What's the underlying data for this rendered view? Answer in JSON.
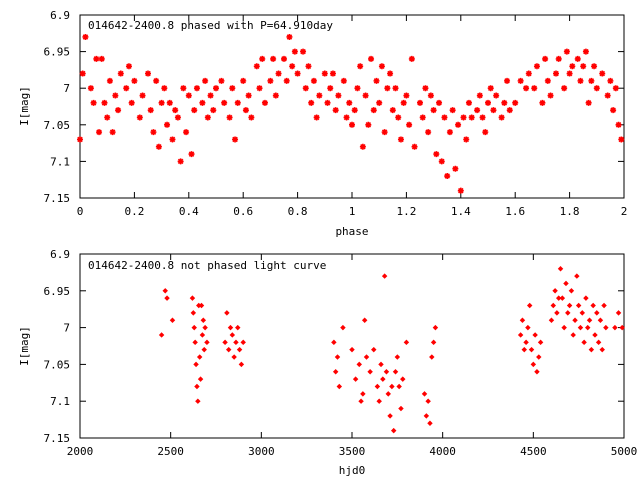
{
  "chart_data": [
    {
      "type": "scatter",
      "title": "014642-2400.8 phased with P=64.910day",
      "xlabel": "phase",
      "ylabel": "I[mag]",
      "xlim": [
        0,
        2
      ],
      "ylim": [
        7.15,
        6.9
      ],
      "y_inverted": true,
      "x_ticks": [
        "0",
        "0.2",
        "0.4",
        "0.6",
        "0.8",
        "1",
        "1.2",
        "1.4",
        "1.6",
        "1.8",
        "2"
      ],
      "y_ticks": [
        "6.9",
        "6.95",
        "7",
        "7.05",
        "7.1",
        "7.15"
      ],
      "marker_color": "#ff0000",
      "marker": "star",
      "points": [
        [
          0.0,
          7.07
        ],
        [
          0.01,
          6.98
        ],
        [
          0.02,
          6.93
        ],
        [
          0.04,
          7.0
        ],
        [
          0.05,
          7.02
        ],
        [
          0.06,
          6.96
        ],
        [
          0.07,
          7.06
        ],
        [
          0.08,
          6.96
        ],
        [
          0.09,
          7.02
        ],
        [
          0.1,
          7.04
        ],
        [
          0.11,
          6.99
        ],
        [
          0.12,
          7.06
        ],
        [
          0.13,
          7.01
        ],
        [
          0.14,
          7.03
        ],
        [
          0.15,
          6.98
        ],
        [
          0.17,
          7.0
        ],
        [
          0.18,
          6.97
        ],
        [
          0.19,
          7.02
        ],
        [
          0.2,
          6.99
        ],
        [
          0.22,
          7.04
        ],
        [
          0.23,
          7.01
        ],
        [
          0.25,
          6.98
        ],
        [
          0.26,
          7.03
        ],
        [
          0.27,
          7.06
        ],
        [
          0.28,
          6.99
        ],
        [
          0.29,
          7.08
        ],
        [
          0.3,
          7.02
        ],
        [
          0.31,
          7.0
        ],
        [
          0.32,
          7.05
        ],
        [
          0.33,
          7.02
        ],
        [
          0.34,
          7.07
        ],
        [
          0.35,
          7.03
        ],
        [
          0.36,
          7.04
        ],
        [
          0.37,
          7.1
        ],
        [
          0.38,
          7.0
        ],
        [
          0.39,
          7.06
        ],
        [
          0.4,
          7.01
        ],
        [
          0.41,
          7.09
        ],
        [
          0.42,
          7.03
        ],
        [
          0.43,
          7.0
        ],
        [
          0.45,
          7.02
        ],
        [
          0.46,
          6.99
        ],
        [
          0.47,
          7.04
        ],
        [
          0.48,
          7.01
        ],
        [
          0.49,
          7.03
        ],
        [
          0.5,
          7.0
        ],
        [
          0.52,
          6.99
        ],
        [
          0.53,
          7.02
        ],
        [
          0.55,
          7.04
        ],
        [
          0.56,
          7.0
        ],
        [
          0.57,
          7.07
        ],
        [
          0.58,
          7.02
        ],
        [
          0.6,
          6.99
        ],
        [
          0.61,
          7.03
        ],
        [
          0.62,
          7.01
        ],
        [
          0.63,
          7.04
        ],
        [
          0.65,
          6.97
        ],
        [
          0.66,
          7.0
        ],
        [
          0.67,
          6.96
        ],
        [
          0.68,
          7.02
        ],
        [
          0.7,
          6.99
        ],
        [
          0.71,
          6.96
        ],
        [
          0.72,
          7.01
        ],
        [
          0.73,
          6.98
        ],
        [
          0.75,
          6.96
        ],
        [
          0.76,
          6.99
        ],
        [
          0.77,
          6.93
        ],
        [
          0.78,
          6.97
        ],
        [
          0.79,
          6.95
        ],
        [
          0.8,
          6.98
        ],
        [
          0.82,
          6.95
        ],
        [
          0.83,
          7.0
        ],
        [
          0.84,
          6.97
        ],
        [
          0.85,
          7.02
        ],
        [
          0.86,
          6.99
        ],
        [
          0.87,
          7.04
        ],
        [
          0.88,
          7.01
        ],
        [
          0.9,
          6.98
        ],
        [
          0.91,
          7.02
        ],
        [
          0.92,
          7.0
        ],
        [
          0.93,
          6.98
        ],
        [
          0.94,
          7.03
        ],
        [
          0.95,
          7.01
        ],
        [
          0.97,
          6.99
        ],
        [
          0.98,
          7.04
        ],
        [
          0.99,
          7.02
        ],
        [
          1.0,
          7.05
        ],
        [
          1.01,
          7.03
        ],
        [
          1.02,
          7.0
        ],
        [
          1.03,
          6.97
        ],
        [
          1.04,
          7.08
        ],
        [
          1.05,
          7.01
        ],
        [
          1.06,
          7.05
        ],
        [
          1.07,
          6.96
        ],
        [
          1.08,
          7.03
        ],
        [
          1.09,
          6.99
        ],
        [
          1.1,
          7.02
        ],
        [
          1.11,
          6.97
        ],
        [
          1.12,
          7.06
        ],
        [
          1.13,
          7.0
        ],
        [
          1.14,
          6.98
        ],
        [
          1.15,
          7.03
        ],
        [
          1.16,
          7.0
        ],
        [
          1.17,
          7.04
        ],
        [
          1.18,
          7.07
        ],
        [
          1.19,
          7.02
        ],
        [
          1.2,
          7.01
        ],
        [
          1.21,
          7.05
        ],
        [
          1.22,
          6.96
        ],
        [
          1.23,
          7.08
        ],
        [
          1.25,
          7.02
        ],
        [
          1.26,
          7.04
        ],
        [
          1.27,
          7.0
        ],
        [
          1.28,
          7.06
        ],
        [
          1.29,
          7.01
        ],
        [
          1.3,
          7.03
        ],
        [
          1.31,
          7.09
        ],
        [
          1.32,
          7.02
        ],
        [
          1.33,
          7.1
        ],
        [
          1.34,
          7.04
        ],
        [
          1.35,
          7.12
        ],
        [
          1.36,
          7.06
        ],
        [
          1.37,
          7.03
        ],
        [
          1.38,
          7.11
        ],
        [
          1.39,
          7.05
        ],
        [
          1.4,
          7.14
        ],
        [
          1.41,
          7.04
        ],
        [
          1.42,
          7.07
        ],
        [
          1.43,
          7.02
        ],
        [
          1.44,
          7.04
        ],
        [
          1.46,
          7.03
        ],
        [
          1.47,
          7.01
        ],
        [
          1.48,
          7.04
        ],
        [
          1.49,
          7.06
        ],
        [
          1.5,
          7.02
        ],
        [
          1.51,
          7.0
        ],
        [
          1.52,
          7.03
        ],
        [
          1.53,
          7.01
        ],
        [
          1.55,
          7.04
        ],
        [
          1.56,
          7.02
        ],
        [
          1.57,
          6.99
        ],
        [
          1.58,
          7.03
        ],
        [
          1.6,
          7.02
        ],
        [
          1.62,
          6.99
        ],
        [
          1.64,
          7.0
        ],
        [
          1.65,
          6.98
        ],
        [
          1.67,
          7.0
        ],
        [
          1.68,
          6.97
        ],
        [
          1.7,
          7.02
        ],
        [
          1.71,
          6.96
        ],
        [
          1.72,
          6.99
        ],
        [
          1.73,
          7.01
        ],
        [
          1.75,
          6.98
        ],
        [
          1.76,
          6.96
        ],
        [
          1.78,
          7.0
        ],
        [
          1.79,
          6.95
        ],
        [
          1.8,
          6.98
        ],
        [
          1.81,
          6.97
        ],
        [
          1.83,
          6.96
        ],
        [
          1.84,
          6.99
        ],
        [
          1.85,
          6.97
        ],
        [
          1.86,
          6.95
        ],
        [
          1.87,
          7.02
        ],
        [
          1.88,
          6.99
        ],
        [
          1.89,
          6.97
        ],
        [
          1.9,
          7.0
        ],
        [
          1.92,
          6.98
        ],
        [
          1.94,
          7.01
        ],
        [
          1.95,
          6.99
        ],
        [
          1.96,
          7.03
        ],
        [
          1.97,
          7.0
        ],
        [
          1.98,
          7.05
        ],
        [
          1.99,
          7.07
        ]
      ]
    },
    {
      "type": "scatter",
      "title": "014642-2400.8 not phased light curve",
      "xlabel": "hjd0",
      "ylabel": "I[mag]",
      "xlim": [
        2000,
        5000
      ],
      "ylim": [
        7.15,
        6.9
      ],
      "y_inverted": true,
      "x_ticks": [
        "2000",
        "2500",
        "3000",
        "3500",
        "4000",
        "4500",
        "5000"
      ],
      "y_ticks": [
        "6.9",
        "6.95",
        "7",
        "7.05",
        "7.1",
        "7.15"
      ],
      "marker_color": "#ff0000",
      "marker": "diamond",
      "points": [
        [
          2450,
          7.01
        ],
        [
          2470,
          6.95
        ],
        [
          2480,
          6.96
        ],
        [
          2510,
          6.99
        ],
        [
          2620,
          6.96
        ],
        [
          2625,
          6.98
        ],
        [
          2630,
          7.0
        ],
        [
          2635,
          7.02
        ],
        [
          2640,
          7.05
        ],
        [
          2645,
          7.08
        ],
        [
          2650,
          7.1
        ],
        [
          2655,
          6.97
        ],
        [
          2660,
          7.04
        ],
        [
          2665,
          7.07
        ],
        [
          2670,
          6.97
        ],
        [
          2675,
          7.01
        ],
        [
          2680,
          6.99
        ],
        [
          2685,
          7.03
        ],
        [
          2690,
          7.0
        ],
        [
          2700,
          7.02
        ],
        [
          2800,
          7.02
        ],
        [
          2810,
          6.98
        ],
        [
          2820,
          7.03
        ],
        [
          2830,
          7.0
        ],
        [
          2840,
          7.01
        ],
        [
          2850,
          7.04
        ],
        [
          2860,
          7.02
        ],
        [
          2870,
          7.0
        ],
        [
          2880,
          7.03
        ],
        [
          2890,
          7.05
        ],
        [
          2900,
          7.02
        ],
        [
          3400,
          7.02
        ],
        [
          3410,
          7.06
        ],
        [
          3420,
          7.04
        ],
        [
          3430,
          7.08
        ],
        [
          3450,
          7.0
        ],
        [
          3500,
          7.03
        ],
        [
          3520,
          7.07
        ],
        [
          3540,
          7.05
        ],
        [
          3550,
          7.1
        ],
        [
          3560,
          7.09
        ],
        [
          3570,
          6.99
        ],
        [
          3580,
          7.04
        ],
        [
          3600,
          7.06
        ],
        [
          3620,
          7.03
        ],
        [
          3640,
          7.08
        ],
        [
          3650,
          7.1
        ],
        [
          3660,
          7.05
        ],
        [
          3670,
          7.07
        ],
        [
          3680,
          6.93
        ],
        [
          3690,
          7.06
        ],
        [
          3700,
          7.09
        ],
        [
          3710,
          7.12
        ],
        [
          3720,
          7.08
        ],
        [
          3730,
          7.14
        ],
        [
          3740,
          7.06
        ],
        [
          3750,
          7.04
        ],
        [
          3760,
          7.08
        ],
        [
          3770,
          7.11
        ],
        [
          3780,
          7.07
        ],
        [
          3800,
          7.02
        ],
        [
          3900,
          7.09
        ],
        [
          3910,
          7.12
        ],
        [
          3920,
          7.1
        ],
        [
          3930,
          7.13
        ],
        [
          3940,
          7.04
        ],
        [
          3950,
          7.02
        ],
        [
          3960,
          7.0
        ],
        [
          4430,
          7.01
        ],
        [
          4440,
          6.99
        ],
        [
          4450,
          7.03
        ],
        [
          4460,
          7.02
        ],
        [
          4470,
          7.0
        ],
        [
          4480,
          6.97
        ],
        [
          4490,
          7.03
        ],
        [
          4500,
          7.05
        ],
        [
          4510,
          7.01
        ],
        [
          4520,
          7.06
        ],
        [
          4530,
          7.04
        ],
        [
          4540,
          7.02
        ],
        [
          4600,
          6.99
        ],
        [
          4610,
          6.97
        ],
        [
          4620,
          6.95
        ],
        [
          4630,
          6.98
        ],
        [
          4640,
          6.96
        ],
        [
          4650,
          6.92
        ],
        [
          4660,
          6.96
        ],
        [
          4670,
          7.0
        ],
        [
          4680,
          6.94
        ],
        [
          4690,
          6.98
        ],
        [
          4700,
          6.97
        ],
        [
          4710,
          6.95
        ],
        [
          4720,
          7.01
        ],
        [
          4730,
          6.99
        ],
        [
          4740,
          6.93
        ],
        [
          4750,
          6.97
        ],
        [
          4760,
          7.0
        ],
        [
          4770,
          6.98
        ],
        [
          4780,
          7.02
        ],
        [
          4790,
          6.96
        ],
        [
          4800,
          7.0
        ],
        [
          4810,
          6.99
        ],
        [
          4820,
          7.03
        ],
        [
          4830,
          6.97
        ],
        [
          4840,
          7.01
        ],
        [
          4850,
          6.98
        ],
        [
          4860,
          7.02
        ],
        [
          4870,
          6.99
        ],
        [
          4880,
          7.03
        ],
        [
          4890,
          6.97
        ],
        [
          4900,
          7.0
        ],
        [
          4950,
          7.0
        ],
        [
          4970,
          6.98
        ],
        [
          4990,
          7.0
        ]
      ]
    }
  ]
}
